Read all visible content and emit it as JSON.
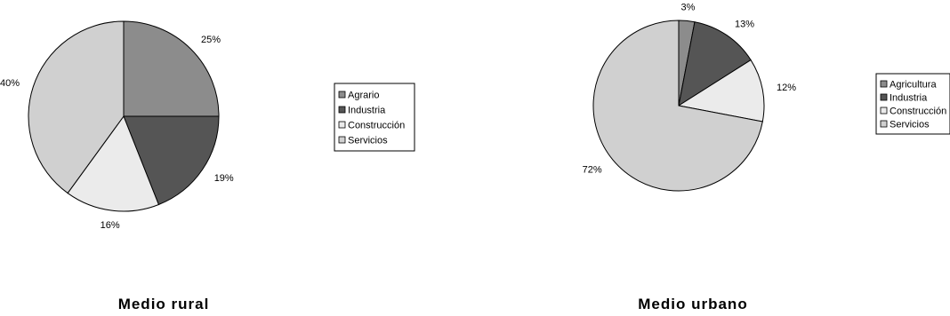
{
  "chart_data": [
    {
      "type": "pie",
      "title": "Medio rural",
      "categories": [
        "Agrario",
        "Industria",
        "Construcción",
        "Servicios"
      ],
      "values": [
        25,
        19,
        16,
        40
      ],
      "labels": [
        "25%",
        "19%",
        "16%",
        "40%"
      ],
      "colors": [
        "#8c8c8c",
        "#555555",
        "#ebebeb",
        "#d0d0d0"
      ],
      "legend_position": "right"
    },
    {
      "type": "pie",
      "title": "Medio urbano",
      "categories": [
        "Agricultura",
        "Industria",
        "Construcción",
        "Servicios"
      ],
      "values": [
        3,
        13,
        12,
        72
      ],
      "labels": [
        "3%",
        "13%",
        "12%",
        "72%"
      ],
      "colors": [
        "#8c8c8c",
        "#555555",
        "#ebebeb",
        "#d0d0d0"
      ],
      "legend_position": "right"
    }
  ]
}
